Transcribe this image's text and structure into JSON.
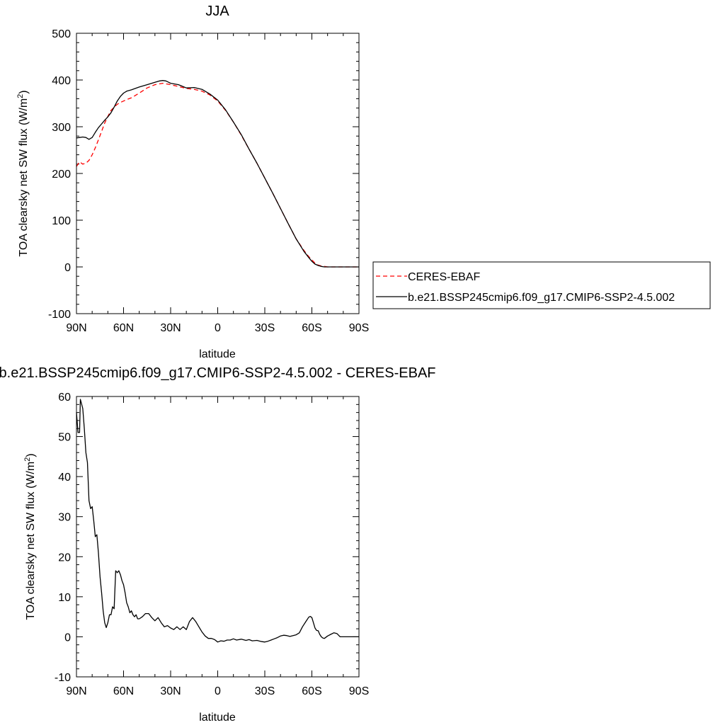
{
  "chart_data": [
    {
      "type": "line",
      "title": "JJA",
      "xlabel": "latitude",
      "ylabel": "TOA clearsky net SW flux (W/m",
      "ylabel_sup": "2",
      "ylabel_tail": ")",
      "xlim": [
        90,
        -90
      ],
      "ylim": [
        -100,
        500
      ],
      "x_ticks": [
        {
          "value": 90,
          "label": "90N"
        },
        {
          "value": 60,
          "label": "60N"
        },
        {
          "value": 30,
          "label": "30N"
        },
        {
          "value": 0,
          "label": "0"
        },
        {
          "value": -30,
          "label": "30S"
        },
        {
          "value": -60,
          "label": "60S"
        },
        {
          "value": -90,
          "label": "90S"
        }
      ],
      "y_ticks": [
        -100,
        0,
        100,
        200,
        300,
        400,
        500
      ],
      "legend": "right",
      "series": [
        {
          "name": "CERES-EBAF",
          "color": "#ff0000",
          "dash": "dashed",
          "x": [
            90,
            88,
            86,
            84,
            82,
            80,
            78,
            76,
            74,
            72,
            70,
            68,
            66,
            64,
            62,
            60,
            58,
            55,
            50,
            45,
            40,
            35,
            30,
            25,
            20,
            15,
            10,
            5,
            0,
            -5,
            -10,
            -15,
            -20,
            -25,
            -30,
            -35,
            -40,
            -45,
            -50,
            -55,
            -58,
            -60,
            -62,
            -64,
            -66,
            -68,
            -70,
            -75,
            -80,
            -85,
            -90
          ],
          "y": [
            215,
            225,
            220,
            222,
            228,
            240,
            255,
            272,
            290,
            308,
            322,
            335,
            342,
            348,
            352,
            355,
            358,
            362,
            372,
            383,
            390,
            393,
            390,
            386,
            382,
            380,
            376,
            368,
            355,
            335,
            310,
            282,
            252,
            222,
            190,
            158,
            125,
            92,
            60,
            35,
            22,
            15,
            8,
            4,
            2,
            1,
            0,
            0,
            0,
            0,
            0
          ]
        },
        {
          "name": "b.e21.BSSP245cmip6.f09_g17.CMIP6-SSP2-4.5.002",
          "color": "#000000",
          "dash": "solid",
          "x": [
            90,
            88,
            86,
            84,
            82,
            80,
            78,
            76,
            74,
            72,
            70,
            68,
            66,
            64,
            62,
            60,
            58,
            55,
            50,
            45,
            40,
            37,
            35,
            33,
            30,
            25,
            20,
            15,
            10,
            5,
            0,
            -5,
            -10,
            -15,
            -20,
            -25,
            -30,
            -35,
            -40,
            -45,
            -50,
            -55,
            -58,
            -60,
            -62,
            -64,
            -66,
            -68,
            -70,
            -75,
            -80,
            -85,
            -90
          ],
          "y": [
            276,
            277,
            278,
            277,
            273,
            277,
            288,
            298,
            306,
            314,
            321,
            330,
            342,
            355,
            365,
            372,
            376,
            379,
            385,
            390,
            395,
            398,
            399,
            398,
            393,
            390,
            383,
            384,
            380,
            370,
            357,
            336,
            310,
            283,
            252,
            222,
            190,
            158,
            125,
            92,
            60,
            33,
            20,
            12,
            6,
            3,
            1,
            0,
            0,
            0,
            0,
            0,
            0
          ]
        }
      ]
    },
    {
      "type": "line",
      "title": "b.e21.BSSP245cmip6.f09_g17.CMIP6-SSP2-4.5.002 - CERES-EBAF",
      "xlabel": "latitude",
      "ylabel": "TOA clearsky net SW flux (W/m",
      "ylabel_sup": "2",
      "ylabel_tail": ")",
      "xlim": [
        90,
        -90
      ],
      "ylim": [
        -10,
        60
      ],
      "x_ticks": [
        {
          "value": 90,
          "label": "90N"
        },
        {
          "value": 60,
          "label": "60N"
        },
        {
          "value": 30,
          "label": "30N"
        },
        {
          "value": 0,
          "label": "0"
        },
        {
          "value": -30,
          "label": "30S"
        },
        {
          "value": -60,
          "label": "60S"
        },
        {
          "value": -90,
          "label": "90S"
        }
      ],
      "y_ticks": [
        -10,
        0,
        10,
        20,
        30,
        40,
        50,
        60
      ],
      "series": [
        {
          "color": "#000000",
          "dash": "solid",
          "x": [
            90,
            89,
            88,
            87.5,
            87,
            86,
            85,
            84,
            83,
            82,
            81,
            80,
            79,
            78,
            77,
            76,
            75,
            74,
            73,
            72,
            71,
            70,
            69,
            68,
            67,
            66,
            65,
            64,
            63,
            62,
            61,
            60,
            59,
            58,
            57,
            56,
            55,
            54,
            53,
            52,
            51,
            50,
            48,
            46,
            44,
            42,
            40,
            38,
            36,
            34,
            32,
            30,
            28,
            26,
            24,
            22,
            20,
            18,
            16,
            14,
            12,
            10,
            8,
            6,
            4,
            2,
            0,
            -2,
            -4,
            -6,
            -8,
            -10,
            -12,
            -15,
            -18,
            -20,
            -22,
            -25,
            -28,
            -30,
            -32,
            -34,
            -36,
            -38,
            -40,
            -42,
            -44,
            -46,
            -48,
            -50,
            -52,
            -54,
            -56,
            -58,
            -59,
            -60,
            -61,
            -62,
            -63,
            -64,
            -65,
            -66,
            -67,
            -68,
            -70,
            -72,
            -74,
            -76,
            -78,
            -80,
            -82,
            -84,
            -86,
            -88,
            -90
          ],
          "y": [
            56,
            51,
            51,
            59.3,
            58.5,
            57,
            52,
            46,
            43.5,
            34,
            32,
            32.5,
            29,
            25,
            25.5,
            21,
            15,
            11,
            6.5,
            3.5,
            2.3,
            3.5,
            5.5,
            5.5,
            7.5,
            7,
            16.5,
            16,
            16.5,
            15.5,
            14,
            13,
            11,
            8.5,
            7.5,
            6,
            6.5,
            5.5,
            5,
            5.5,
            4.5,
            4.5,
            5,
            5.8,
            5.8,
            4.8,
            4,
            4.8,
            3.5,
            2.5,
            2.8,
            2.2,
            1.8,
            2.5,
            1.8,
            2.5,
            1.8,
            3.8,
            4.8,
            3.8,
            2.5,
            1.2,
            0.2,
            -0.4,
            -0.4,
            -0.7,
            -1.3,
            -1,
            -1.1,
            -0.8,
            -0.8,
            -0.5,
            -0.8,
            -0.6,
            -0.9,
            -0.7,
            -1,
            -0.9,
            -1.2,
            -1.3,
            -1.1,
            -0.8,
            -0.5,
            -0.2,
            0.2,
            0.4,
            0.3,
            0.1,
            0.3,
            0.5,
            1,
            2.5,
            3.7,
            4.9,
            5.1,
            4.8,
            3.5,
            2.2,
            1.6,
            1.5,
            0.6,
            0,
            -0.3,
            -0.4,
            0.2,
            0.6,
            1,
            0.8,
            0,
            0,
            0,
            0,
            0,
            0,
            0
          ]
        }
      ]
    }
  ]
}
